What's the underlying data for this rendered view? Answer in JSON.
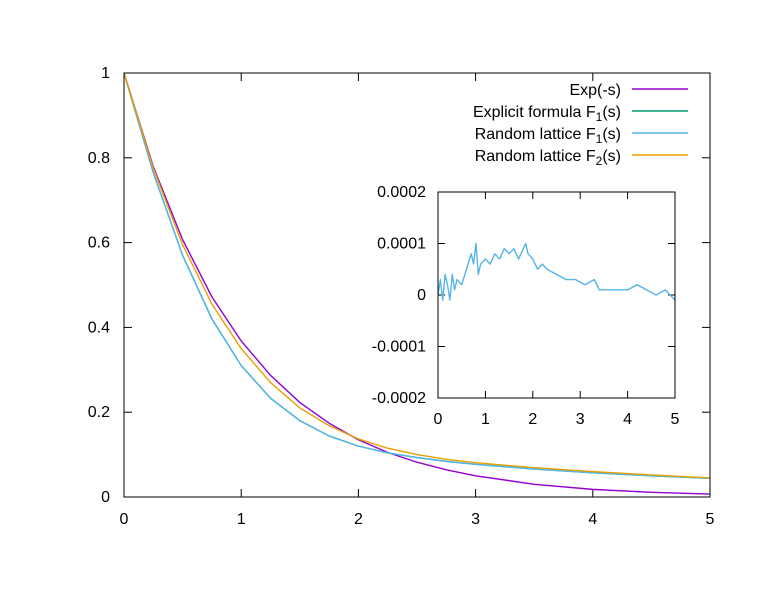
{
  "chart_data": [
    {
      "id": "main",
      "type": "line",
      "title": "",
      "xlabel": "",
      "ylabel": "",
      "xlim": [
        0,
        5
      ],
      "ylim": [
        0,
        1
      ],
      "xticks": [
        0,
        1,
        2,
        3,
        4,
        5
      ],
      "yticks": [
        0,
        0.2,
        0.4,
        0.6,
        0.8,
        1
      ],
      "xtick_labels": [
        "0",
        "1",
        "2",
        "3",
        "4",
        "5"
      ],
      "ytick_labels": [
        "0",
        "0.2",
        "0.4",
        "0.6",
        "0.8",
        "1"
      ],
      "grid": false,
      "legend_position": "top-right",
      "series": [
        {
          "name": "Exp(-s)",
          "name_main": "Exp(-s)",
          "name_sub": "",
          "name_suffix": "",
          "color": "#9400d3",
          "x": [
            0,
            0.25,
            0.5,
            0.75,
            1,
            1.25,
            1.5,
            1.75,
            2,
            2.25,
            2.5,
            2.75,
            3,
            3.5,
            4,
            4.5,
            5
          ],
          "y": [
            1,
            0.779,
            0.607,
            0.472,
            0.368,
            0.287,
            0.223,
            0.174,
            0.135,
            0.105,
            0.082,
            0.064,
            0.05,
            0.03,
            0.018,
            0.011,
            0.007
          ]
        },
        {
          "name": "Explicit formula F1(s)",
          "name_main": "Explicit formula F",
          "name_sub": "1",
          "name_suffix": "(s)",
          "color": "#009e73",
          "x": [
            0,
            0.25,
            0.5,
            0.75,
            1,
            1.25,
            1.5,
            1.75,
            2,
            2.25,
            2.5,
            2.75,
            3,
            3.5,
            4,
            4.5,
            5
          ],
          "y": [
            1,
            0.765,
            0.57,
            0.42,
            0.31,
            0.233,
            0.18,
            0.144,
            0.12,
            0.104,
            0.093,
            0.084,
            0.077,
            0.066,
            0.057,
            0.05,
            0.044
          ]
        },
        {
          "name": "Random lattice F1(s)",
          "name_main": "Random lattice F",
          "name_sub": "1",
          "name_suffix": "(s)",
          "color": "#56b4e9",
          "x": [
            0,
            0.25,
            0.5,
            0.75,
            1,
            1.25,
            1.5,
            1.75,
            2,
            2.25,
            2.5,
            2.75,
            3,
            3.5,
            4,
            4.5,
            5
          ],
          "y": [
            1,
            0.765,
            0.57,
            0.42,
            0.31,
            0.233,
            0.18,
            0.144,
            0.12,
            0.104,
            0.093,
            0.084,
            0.077,
            0.066,
            0.057,
            0.05,
            0.044
          ]
        },
        {
          "name": "Random lattice F2(s)",
          "name_main": "Random lattice F",
          "name_sub": "2",
          "name_suffix": "(s)",
          "color": "#e69f00",
          "x": [
            0,
            0.25,
            0.5,
            0.75,
            1,
            1.25,
            1.5,
            1.75,
            2,
            2.25,
            2.5,
            2.75,
            3,
            3.5,
            4,
            4.5,
            5
          ],
          "y": [
            1,
            0.775,
            0.595,
            0.455,
            0.35,
            0.27,
            0.21,
            0.168,
            0.137,
            0.115,
            0.1,
            0.089,
            0.081,
            0.069,
            0.06,
            0.052,
            0.045
          ]
        }
      ]
    },
    {
      "id": "inset",
      "type": "line",
      "title": "",
      "xlabel": "",
      "ylabel": "",
      "xlim": [
        0,
        5
      ],
      "ylim": [
        -0.0002,
        0.0002
      ],
      "xticks": [
        0,
        1,
        2,
        3,
        4,
        5
      ],
      "yticks": [
        -0.0002,
        -0.0001,
        0,
        0.0001,
        0.0002
      ],
      "xtick_labels": [
        "0",
        "1",
        "2",
        "3",
        "4",
        "5"
      ],
      "ytick_labels": [
        "-0.0002",
        "-0.0001",
        "0",
        "0.0001",
        "0.0002"
      ],
      "grid": false,
      "series": [
        {
          "color": "#56b4e9",
          "x": [
            0,
            0.05,
            0.1,
            0.15,
            0.2,
            0.25,
            0.3,
            0.35,
            0.4,
            0.5,
            0.6,
            0.7,
            0.75,
            0.8,
            0.85,
            0.9,
            1.0,
            1.1,
            1.2,
            1.3,
            1.4,
            1.5,
            1.6,
            1.7,
            1.8,
            1.85,
            1.9,
            2.0,
            2.1,
            2.2,
            2.3,
            2.5,
            2.7,
            2.9,
            3.1,
            3.3,
            3.4,
            3.6,
            3.8,
            4.0,
            4.2,
            4.4,
            4.6,
            4.8,
            5.0
          ],
          "y": [
            0.0,
            3e-05,
            -1e-05,
            4e-05,
            2e-05,
            -1e-05,
            4e-05,
            1e-05,
            3e-05,
            2e-05,
            5e-05,
            8e-05,
            6e-05,
            0.0001,
            4e-05,
            6e-05,
            7e-05,
            6e-05,
            8e-05,
            7e-05,
            9e-05,
            8e-05,
            9e-05,
            7e-05,
            9e-05,
            0.0001,
            8e-05,
            7e-05,
            5e-05,
            6e-05,
            5e-05,
            4e-05,
            3e-05,
            3e-05,
            2e-05,
            3e-05,
            1e-05,
            1e-05,
            1e-05,
            1e-05,
            2e-05,
            1e-05,
            0.0,
            1e-05,
            -1e-05
          ]
        }
      ]
    }
  ]
}
